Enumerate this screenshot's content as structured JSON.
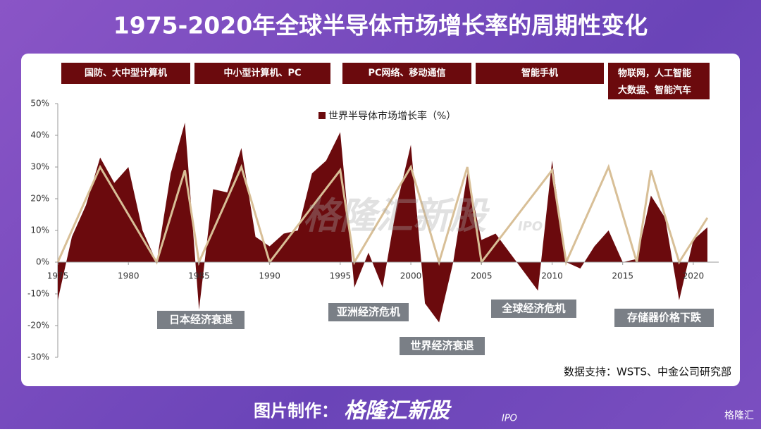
{
  "chart_data": {
    "type": "area-line",
    "title": "1975-2020年全球半导体市场增长率的周期性变化",
    "eras": [
      "国防、大中型计算机",
      "中小型计算机、PC",
      "PC网络、移动通信",
      "智能手机",
      "物联网，人工智能\n大数据、智能汽车"
    ],
    "annotations": [
      "日本经济衰退",
      "亚洲经济危机",
      "世界经济衰退",
      "全球经济危机",
      "存储器价格下跌"
    ],
    "source": "数据支持：WSTS、中金公司研究部",
    "watermark": "格隆汇新股",
    "watermark_sub": "IPO",
    "footer_label": "图片制作：",
    "footer_brand": "格隆汇新股",
    "footer_brand_sub": "IPO",
    "corner_logo": "格隆汇",
    "series": [
      {
        "name": "世界半导体市场增长率（%）",
        "color": "#6b0a0d",
        "x": [
          1975,
          1976,
          1977,
          1978,
          1979,
          1980,
          1981,
          1982,
          1983,
          1984,
          1985,
          1986,
          1987,
          1988,
          1989,
          1990,
          1991,
          1992,
          1993,
          1994,
          1995,
          1996,
          1997,
          1998,
          1999,
          2000,
          2001,
          2002,
          2003,
          2004,
          2005,
          2006,
          2007,
          2008,
          2009,
          2010,
          2011,
          2012,
          2013,
          2014,
          2015,
          2016,
          2017,
          2018,
          2019,
          2020,
          2021
        ],
        "values": [
          -12,
          8,
          18,
          33,
          25,
          30,
          10,
          0,
          28,
          44,
          -15,
          23,
          22,
          36,
          8,
          5,
          9,
          10,
          28,
          32,
          41,
          -8,
          3,
          -8,
          18,
          37,
          -13,
          -19,
          0,
          28,
          7,
          9,
          3,
          -3,
          -9,
          32,
          0,
          -2,
          5,
          10,
          0,
          1,
          21,
          14,
          -12,
          7,
          11
        ]
      },
      {
        "color": "#d8bf97",
        "x": [
          1975,
          1978,
          1982,
          1984,
          1985,
          1988,
          1990,
          1995,
          1996,
          2000,
          2002,
          2004,
          2005,
          2010,
          2011,
          2014,
          2016,
          2017,
          2019,
          2021
        ],
        "values": [
          0,
          30,
          0,
          29,
          0,
          30,
          0,
          29,
          0,
          30,
          0,
          30,
          0,
          29,
          0,
          30,
          0,
          29,
          0,
          14
        ]
      }
    ],
    "xlim": [
      1975,
      2021.8
    ],
    "ylim": [
      -30,
      50
    ],
    "xticks": [
      1975,
      1980,
      1985,
      1990,
      1995,
      2000,
      2005,
      2010,
      2015,
      2020
    ],
    "yticks": [
      {
        "value": 50,
        "label": "50%"
      },
      {
        "value": 40,
        "label": "40%"
      },
      {
        "value": 30,
        "label": "30%"
      },
      {
        "value": 20,
        "label": "20%"
      },
      {
        "value": 10,
        "label": "10%"
      },
      {
        "value": 0,
        "label": "0%"
      },
      {
        "value": -10,
        "label": "-10%"
      },
      {
        "value": -20,
        "label": "-20%"
      },
      {
        "value": -30,
        "label": "-30%"
      }
    ]
  }
}
